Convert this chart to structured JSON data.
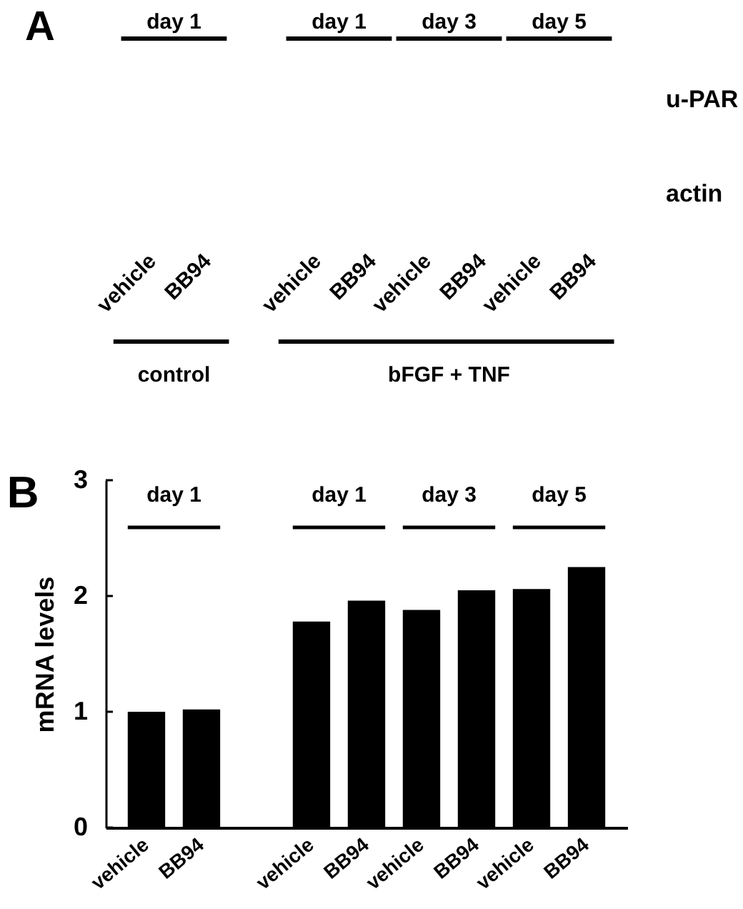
{
  "chart_data": [
    {
      "type": "other",
      "title": "A",
      "categories": [
        "vehicle",
        "BB94",
        null,
        "vehicle",
        "BB94",
        "vehicle",
        "BB94",
        "vehicle",
        "BB94"
      ],
      "y2_categories": [
        "u-PAR",
        "actin"
      ],
      "annotations": [
        "day 1",
        "day 1",
        "day 3",
        "day 5",
        "control",
        "bFGF + TNF"
      ]
    },
    {
      "type": "bar",
      "title": "B",
      "categories": [
        "vehicle",
        "BB94",
        null,
        "vehicle",
        "BB94",
        "vehicle",
        "BB94",
        "vehicle",
        "BB94"
      ],
      "values": [
        1.0,
        1.02,
        null,
        1.78,
        1.96,
        1.88,
        2.05,
        2.06,
        2.25
      ],
      "color": "#000000",
      "ylabel": "mRNA levels",
      "ylim": [
        0,
        3
      ],
      "yticks": [
        0,
        1,
        2,
        3
      ],
      "annotations": [
        "day 1",
        "day 1",
        "day 3",
        "day 5"
      ]
    }
  ]
}
